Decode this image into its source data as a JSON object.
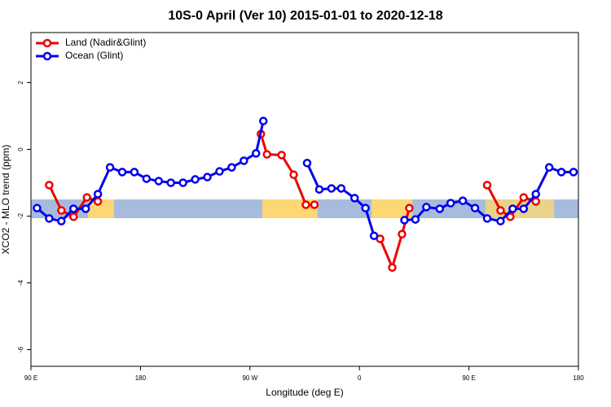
{
  "chart_data": {
    "type": "line",
    "title": "10S-0 April (Ver 10)   2015-01-01 to 2020-12-18",
    "x_label": "Longitude (deg E)",
    "y_label": "XCO2 - MLO trend (ppm)",
    "xlim": [
      90,
      540
    ],
    "xticks": [
      {
        "value": 90,
        "label": "90 E"
      },
      {
        "value": 180,
        "label": "180"
      },
      {
        "value": 270,
        "label": "90 W"
      },
      {
        "value": 360,
        "label": "0"
      },
      {
        "value": 450,
        "label": "90 E"
      },
      {
        "value": 540,
        "label": "180"
      }
    ],
    "ylim": [
      -6.5,
      3.5
    ],
    "yticks": [
      -6,
      -4,
      -2,
      0,
      2
    ],
    "legend": "top-left",
    "series": [
      {
        "name": "Land (Nadir&Glint)",
        "color": "#ee0000",
        "x": [
          105,
          115,
          125,
          136,
          145,
          null,
          279,
          284,
          296,
          306,
          316,
          323,
          null,
          377,
          387,
          395,
          401,
          null,
          465,
          476,
          484,
          495,
          505
        ],
        "values": [
          -1.07,
          -1.83,
          -2.02,
          -1.44,
          -1.56,
          null,
          0.46,
          -0.15,
          -0.17,
          -0.76,
          -1.66,
          -1.66,
          null,
          -2.68,
          -3.54,
          -2.54,
          -1.76,
          null,
          -1.07,
          -1.83,
          -2.02,
          -1.44,
          -1.56
        ]
      },
      {
        "name": "Ocean (Glint)",
        "color": "#0000ee",
        "x": [
          95,
          105,
          115,
          125,
          135,
          145,
          155,
          165,
          175,
          185,
          195,
          205,
          215,
          225,
          235,
          245,
          255,
          265,
          275,
          281,
          null,
          317,
          327,
          337,
          345,
          356,
          365,
          372,
          null,
          397,
          406,
          415,
          426,
          435,
          445,
          455,
          465,
          476,
          486,
          495,
          505,
          516,
          526,
          536
        ],
        "values": [
          -1.76,
          -2.07,
          -2.15,
          -1.78,
          -1.78,
          -1.34,
          -0.54,
          -0.68,
          -0.68,
          -0.88,
          -0.95,
          -1.0,
          -1.0,
          -0.9,
          -0.83,
          -0.66,
          -0.54,
          -0.34,
          -0.12,
          0.85,
          null,
          -0.41,
          -1.2,
          -1.17,
          -1.17,
          -1.46,
          -1.76,
          -2.59,
          null,
          -2.12,
          -2.1,
          -1.73,
          -1.78,
          -1.61,
          -1.54,
          -1.76,
          -2.07,
          -2.15,
          -1.78,
          -1.78,
          -1.34,
          -0.54,
          -0.68,
          -0.68
        ]
      }
    ]
  }
}
